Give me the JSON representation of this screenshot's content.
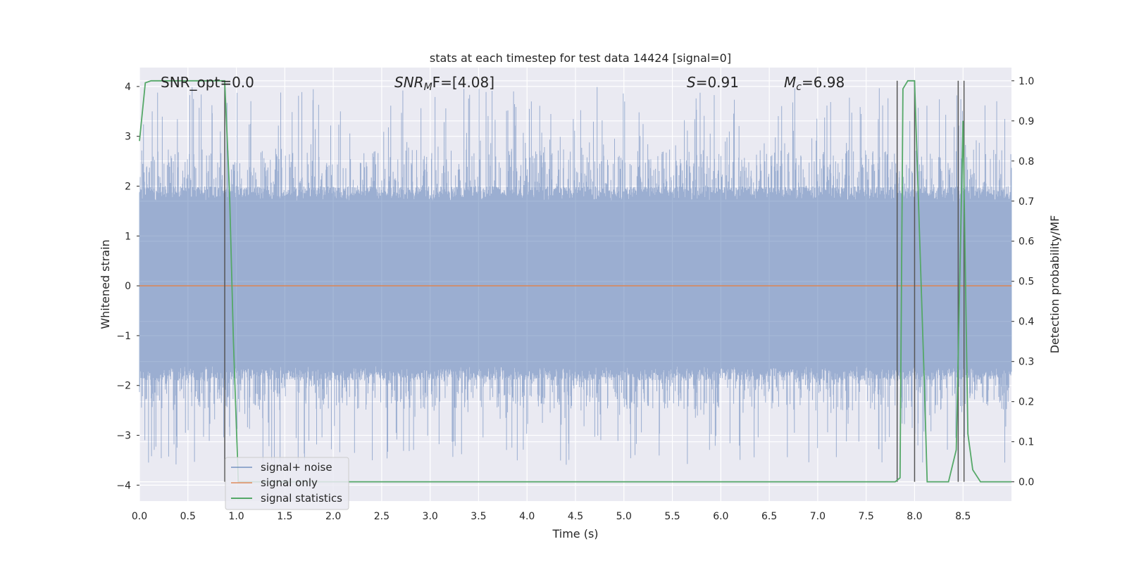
{
  "chart_data": {
    "type": "line",
    "title": "stats at each timestep for test data 14424 [signal=0]",
    "xlabel": "Time (s)",
    "ylabel": "Whitened strain",
    "y2label": "Detection probability/MF",
    "xlim": [
      0.0,
      9.0
    ],
    "ylim": [
      -4.32,
      4.38
    ],
    "y2lim": [
      -0.048,
      1.033
    ],
    "xticks": [
      "0.0",
      "0.5",
      "1.0",
      "1.5",
      "2.0",
      "2.5",
      "3.0",
      "3.5",
      "4.0",
      "4.5",
      "5.0",
      "5.5",
      "6.0",
      "6.5",
      "7.0",
      "7.5",
      "8.0",
      "8.5"
    ],
    "yticks": [
      "4",
      "3",
      "2",
      "1",
      "0",
      "−1",
      "−2",
      "−3",
      "−4"
    ],
    "y2ticks": [
      "1.0",
      "0.9",
      "0.8",
      "0.7",
      "0.6",
      "0.5",
      "0.4",
      "0.3",
      "0.2",
      "0.1",
      "0.0"
    ],
    "grid": true,
    "legend_position": "lower-left",
    "annotations": {
      "snr_opt": "SNR_opt=0.0",
      "snr_mf_main": "SNR",
      "snr_mf_sub": "M",
      "snr_mf_rest": "F=[4.08]",
      "s_main": "S",
      "s_rest": "=0.91",
      "mc_main": "M",
      "mc_sub": "c",
      "mc_rest": "=6.98"
    },
    "vertical_lines_x": [
      0.88,
      7.82,
      8.0,
      8.45,
      8.51
    ],
    "series": [
      {
        "name": "signal+ noise",
        "color": "#4c72b0",
        "kind": "noise",
        "x_range": [
          0.0,
          9.0
        ],
        "core_amplitude": [
          -1.6,
          1.7
        ],
        "peak_range": [
          -3.6,
          4.0
        ]
      },
      {
        "name": "signal only",
        "color": "#dd8452",
        "kind": "constant",
        "value": 0.0
      },
      {
        "name": "signal statistics",
        "color": "#55a868",
        "axis": "right",
        "x": [
          0.0,
          0.06,
          0.12,
          0.2,
          0.3,
          0.5,
          0.7,
          0.86,
          0.88,
          0.93,
          0.97,
          1.02,
          1.05,
          2.25,
          7.8,
          7.85,
          7.88,
          7.93,
          8.0,
          8.1,
          8.13,
          8.35,
          8.43,
          8.47,
          8.5,
          8.55,
          8.6,
          8.68,
          9.0
        ],
        "y": [
          0.85,
          0.995,
          1.0,
          1.0,
          1.0,
          1.0,
          1.0,
          1.0,
          1.0,
          0.72,
          0.35,
          0.0,
          0.0,
          0.0,
          0.0,
          0.01,
          0.98,
          1.0,
          1.0,
          0.25,
          0.0,
          0.0,
          0.08,
          0.55,
          0.9,
          0.12,
          0.03,
          0.0,
          0.0
        ]
      }
    ]
  }
}
